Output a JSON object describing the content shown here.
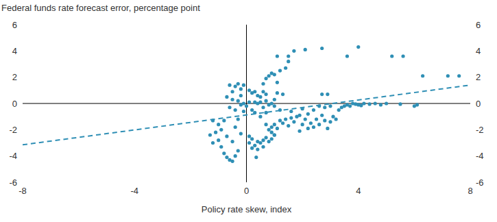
{
  "chart_data": {
    "type": "scatter",
    "title": "Federal funds rate forecast error, percentage point",
    "x_label": "Policy rate skew, index",
    "xlim": [
      -8,
      8
    ],
    "xticks": [
      -8,
      -4,
      0,
      4,
      8
    ],
    "ylim": [
      -6,
      6
    ],
    "yticks": [
      -6,
      -4,
      -2,
      0,
      2,
      4,
      6
    ],
    "grid": false,
    "series": [
      {
        "type": "scatter",
        "color": "#2f8fb5",
        "marker": "circle",
        "x": [
          -1.2,
          -1.1,
          -1.0,
          -0.9,
          -0.8,
          -0.7,
          -0.6,
          -0.5,
          -0.4,
          -0.3,
          -1.3,
          -1.2,
          -1.0,
          -0.9,
          -0.8,
          -0.7,
          -0.5,
          -0.4,
          -0.3,
          -0.2,
          -0.6,
          -0.5,
          -0.4,
          -0.3,
          -0.2,
          -0.1,
          -0.5,
          -0.3,
          -0.2,
          -0.1,
          0.0,
          -0.6,
          -0.4,
          -0.1,
          -0.7,
          -0.2,
          0.1,
          0.1,
          0.2,
          0.3,
          0.35,
          0.4,
          0.5,
          0.6,
          0.7,
          0.8,
          0.9,
          0.2,
          0.4,
          0.6,
          0.1,
          1.0,
          0.1,
          0.2,
          0.3,
          0.4,
          0.5,
          0.6,
          0.7,
          0.3,
          0.4,
          0.5,
          0.6,
          0.7,
          0.8,
          0.9,
          1.0,
          0.2,
          0.3,
          0.5,
          0.7,
          1.0,
          1.1,
          1.3,
          1.2,
          0.6,
          0.7,
          0.8,
          0.9,
          1.0,
          1.2,
          1.4,
          1.1,
          0.7,
          0.8,
          0.9,
          1.0,
          1.1,
          1.2,
          1.3,
          1.4,
          1.6,
          1.5,
          0.9,
          1.0,
          1.7,
          1.8,
          1.9,
          2.0,
          2.1,
          2.2,
          2.3,
          2.4,
          2.5,
          2.6,
          2.7,
          2.8,
          2.9,
          3.0,
          3.1,
          3.2,
          3.3,
          3.4,
          2.6,
          2.8,
          3.0,
          2.0,
          1.6,
          2.4,
          2.7,
          2.9,
          1.9,
          2.2,
          3.5,
          3.6,
          3.8,
          4.0,
          4.2,
          4.4,
          4.6,
          4.8,
          5.0,
          5.5,
          6.0,
          6.1,
          3.7,
          4.1,
          3.9,
          1.1,
          1.5,
          1.7,
          2.1,
          2.7,
          3.6,
          4.0,
          5.2,
          5.6,
          6.3,
          7.2,
          7.6,
          1.5
        ],
        "values": [
          -1.3,
          -2.2,
          -2.8,
          -3.3,
          -3.8,
          -4.1,
          -4.3,
          -4.4,
          -4.0,
          -3.6,
          -2.4,
          -3.0,
          -1.6,
          -2.0,
          -1.3,
          -2.5,
          -2.9,
          -1.8,
          -1.2,
          -2.3,
          1.4,
          0.9,
          1.3,
          1.5,
          1.1,
          1.4,
          0.3,
          0.2,
          0.6,
          0.0,
          -0.2,
          -0.3,
          -0.5,
          -0.6,
          0.5,
          -0.1,
          0.1,
          -3.0,
          -2.7,
          -3.2,
          -4.1,
          -2.9,
          -3.0,
          -2.8,
          -2.6,
          -2.9,
          -2.7,
          -3.4,
          -3.5,
          -3.3,
          -2.5,
          -2.4,
          1.0,
          0.8,
          0.9,
          0.6,
          0.5,
          0.9,
          0.7,
          0.1,
          0.0,
          0.1,
          -0.3,
          0.2,
          -0.1,
          0.0,
          -0.2,
          -0.5,
          -0.7,
          -1.0,
          -0.7,
          0.3,
          0.8,
          0.7,
          -0.5,
          1.5,
          1.9,
          2.1,
          2.3,
          2.2,
          2.5,
          2.7,
          1.6,
          -1.6,
          -2.0,
          -1.8,
          -1.6,
          -1.9,
          -1.3,
          -1.5,
          -1.2,
          -1.1,
          -1.7,
          -2.2,
          -2.4,
          -1.4,
          -1.0,
          -0.9,
          -1.6,
          -1.2,
          -0.8,
          -1.5,
          -1.8,
          -1.2,
          -1.6,
          -0.9,
          -1.3,
          -1.9,
          -1.4,
          -1.0,
          -1.2,
          -0.5,
          -0.3,
          -0.2,
          -0.3,
          -0.2,
          -0.4,
          -0.6,
          -0.5,
          0.7,
          0.7,
          -2.1,
          -1.9,
          -0.2,
          -0.1,
          0.0,
          -0.1,
          0.0,
          -0.05,
          0.0,
          -0.1,
          0.0,
          -0.05,
          -0.2,
          -0.1,
          -0.2,
          -0.15,
          -0.05,
          3.6,
          3.2,
          4.0,
          4.1,
          4.2,
          3.6,
          4.3,
          3.6,
          3.6,
          2.1,
          2.1,
          2.1,
          3.6
        ]
      },
      {
        "type": "line",
        "color": "#2f8fb5",
        "line_style": "dashed",
        "x": [
          -8,
          8
        ],
        "values": [
          -3.15,
          1.4
        ]
      }
    ]
  }
}
